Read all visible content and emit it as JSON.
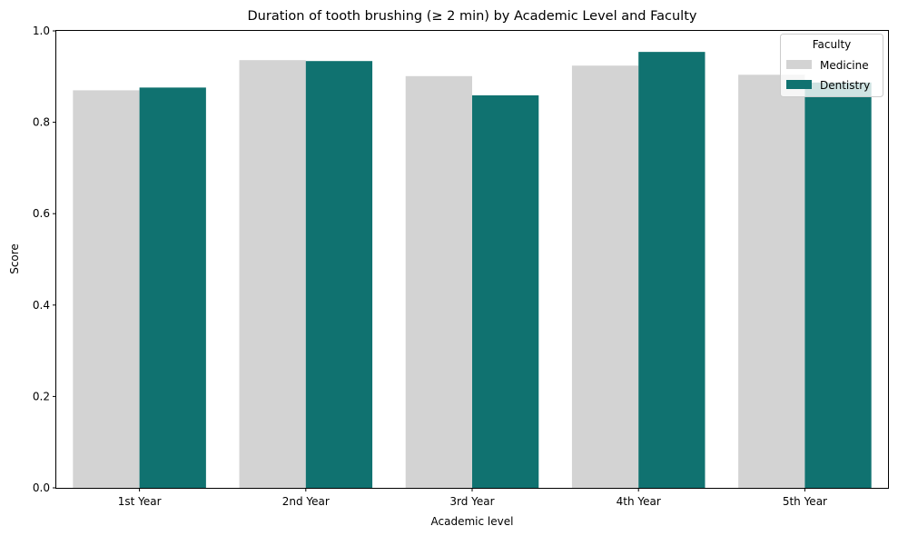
{
  "chart_data": {
    "type": "bar",
    "title": "Duration of tooth brushing (≥ 2 min) by Academic Level and Faculty",
    "xlabel": "Academic level",
    "ylabel": "Score",
    "categories": [
      "1st Year",
      "2nd Year",
      "3rd Year",
      "4th Year",
      "5th Year"
    ],
    "series": [
      {
        "name": "Medicine",
        "color": "#d3d3d3",
        "values": [
          0.87,
          0.936,
          0.901,
          0.924,
          0.904
        ]
      },
      {
        "name": "Dentistry",
        "color": "#107270",
        "values": [
          0.876,
          0.934,
          0.859,
          0.954,
          0.887
        ]
      }
    ],
    "ylim": [
      0,
      1.0
    ],
    "yticks": [
      0.0,
      0.2,
      0.4,
      0.6,
      0.8,
      1.0
    ],
    "ytick_labels": [
      "0.0",
      "0.2",
      "0.4",
      "0.6",
      "0.8",
      "1.0"
    ],
    "grid": false,
    "legend": {
      "title": "Faculty",
      "position": "top-right"
    }
  }
}
